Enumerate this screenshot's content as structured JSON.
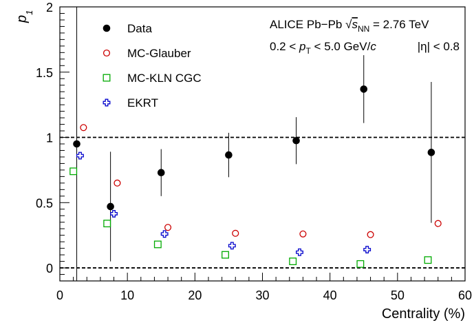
{
  "chart_data": {
    "type": "scatter",
    "xlabel": "Centrality (%)",
    "ylabel_main": "p",
    "ylabel_sub": "1",
    "xlim": [
      0,
      60
    ],
    "ylim": [
      -0.1,
      2.0
    ],
    "xticks": [
      0,
      10,
      20,
      30,
      40,
      50,
      60
    ],
    "xtick_labels": [
      "0",
      "10",
      "20",
      "30",
      "40",
      "50",
      "60"
    ],
    "yticks": [
      0,
      0.5,
      1,
      1.5,
      2
    ],
    "ytick_labels": [
      "0",
      "0.5",
      "1",
      "1.5",
      "2"
    ],
    "reference_lines": [
      0,
      1
    ],
    "grid": false,
    "legend_placement": "top-left",
    "annotations": {
      "line1_prefix": "ALICE Pb−Pb ",
      "line1_sqrt": "s",
      "line1_sub": "NN",
      "line1_suffix": " = 2.76 TeV",
      "line2_prefix": "0.2 < ",
      "line2_p": "p",
      "line2_sub": "T",
      "line2_mid": " < 5.0 GeV/",
      "line2_c": "c",
      "line2_eta": "|η| < 0.8"
    },
    "series": [
      {
        "name": "Data",
        "marker": "filled-circle",
        "color": "#000000",
        "x": [
          2.5,
          7.5,
          15,
          25,
          35,
          45,
          55
        ],
        "y": [
          0.95,
          0.47,
          0.73,
          0.865,
          0.975,
          1.37,
          0.885
        ],
        "err_low": [
          1.05,
          0.42,
          0.18,
          0.17,
          0.18,
          0.26,
          0.54
        ],
        "err_high": [
          1.05,
          0.42,
          0.18,
          0.17,
          0.18,
          0.26,
          0.54
        ]
      },
      {
        "name": "MC-Glauber",
        "marker": "open-circle",
        "color": "#cc0000",
        "x": [
          3.5,
          8.5,
          16,
          26,
          36,
          46,
          56
        ],
        "y": [
          1.075,
          0.65,
          0.31,
          0.265,
          0.26,
          0.255,
          0.34
        ]
      },
      {
        "name": "MC-KLN CGC",
        "marker": "open-square",
        "color": "#00aa00",
        "x": [
          2,
          7,
          14.5,
          24.5,
          34.5,
          44.5,
          54.5
        ],
        "y": [
          0.74,
          0.34,
          0.18,
          0.1,
          0.05,
          0.03,
          0.06
        ]
      },
      {
        "name": "EKRT",
        "marker": "open-cross",
        "color": "#0000cc",
        "x": [
          3,
          8,
          15.5,
          25.5,
          35.5,
          45.5
        ],
        "y": [
          0.86,
          0.415,
          0.26,
          0.17,
          0.12,
          0.14
        ]
      }
    ]
  }
}
